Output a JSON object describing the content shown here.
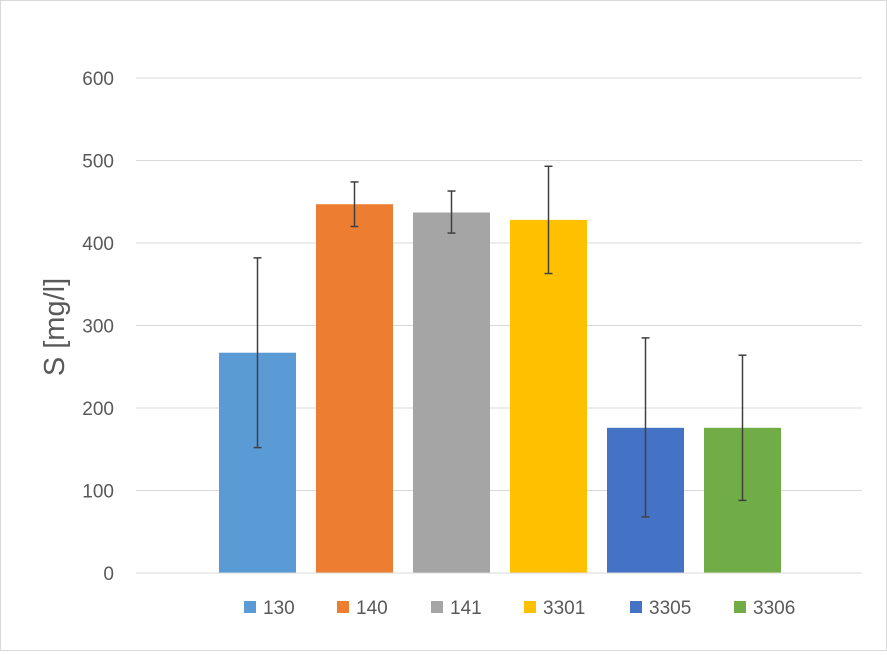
{
  "chart_data": {
    "type": "bar",
    "title": "",
    "xlabel": "",
    "ylabel": "S [mg/l]",
    "ylim": [
      0,
      600
    ],
    "yticks": [
      0,
      100,
      200,
      300,
      400,
      500,
      600
    ],
    "ytick_labels": [
      "0",
      "100",
      "200",
      "300",
      "400",
      "500",
      "600"
    ],
    "grid": true,
    "legend_position": "bottom",
    "series": [
      {
        "name": "130",
        "value": 267,
        "err_low": 152,
        "err_high": 382,
        "color": "#5b9bd5"
      },
      {
        "name": "140",
        "value": 447,
        "err_low": 420,
        "err_high": 474,
        "color": "#ed7d31"
      },
      {
        "name": "141",
        "value": 437,
        "err_low": 412,
        "err_high": 463,
        "color": "#a5a5a5"
      },
      {
        "name": "3301",
        "value": 428,
        "err_low": 363,
        "err_high": 493,
        "color": "#ffc000"
      },
      {
        "name": "3305",
        "value": 176,
        "err_low": 68,
        "err_high": 285,
        "color": "#4472c4"
      },
      {
        "name": "3306",
        "value": 176,
        "err_low": 88,
        "err_high": 264,
        "color": "#70ad47"
      }
    ]
  }
}
